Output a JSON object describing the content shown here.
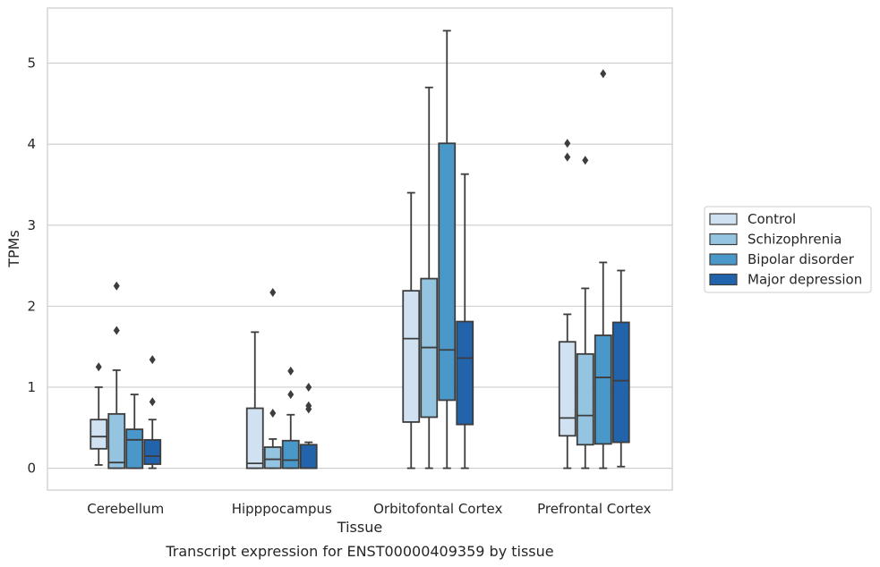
{
  "chart_data": {
    "type": "box",
    "caption": "Transcript expression for ENST00000409359 by tissue",
    "xlabel": "Tissue",
    "ylabel": "TPMs",
    "ylim": [
      -0.27,
      5.68
    ],
    "yticks": [
      0,
      1,
      2,
      3,
      4,
      5
    ],
    "grid": "horizontal",
    "legend_position": "right",
    "categories": [
      "Cerebellum",
      "Hipppocampus",
      "Orbitofontal Cortex",
      "Prefrontal Cortex"
    ],
    "series": [
      {
        "name": "Control",
        "color": "#d0e1f2",
        "boxes": [
          {
            "whislo": 0.04,
            "q1": 0.24,
            "med": 0.39,
            "q3": 0.6,
            "whishi": 1.0,
            "fliers": [
              1.25
            ]
          },
          {
            "whislo": 0.0,
            "q1": 0.0,
            "med": 0.06,
            "q3": 0.74,
            "whishi": 1.68,
            "fliers": []
          },
          {
            "whislo": 0.0,
            "q1": 0.57,
            "med": 1.6,
            "q3": 2.19,
            "whishi": 3.4,
            "fliers": []
          },
          {
            "whislo": 0.0,
            "q1": 0.4,
            "med": 0.62,
            "q3": 1.56,
            "whishi": 1.9,
            "fliers": [
              4.01,
              3.84
            ]
          }
        ]
      },
      {
        "name": "Schizophrenia",
        "color": "#94c4df",
        "boxes": [
          {
            "whislo": 0.0,
            "q1": 0.0,
            "med": 0.07,
            "q3": 0.67,
            "whishi": 1.21,
            "fliers": [
              2.25,
              1.7
            ]
          },
          {
            "whislo": 0.0,
            "q1": 0.0,
            "med": 0.11,
            "q3": 0.26,
            "whishi": 0.36,
            "fliers": [
              2.17,
              0.68
            ]
          },
          {
            "whislo": 0.0,
            "q1": 0.63,
            "med": 1.49,
            "q3": 2.34,
            "whishi": 4.7,
            "fliers": []
          },
          {
            "whislo": 0.0,
            "q1": 0.29,
            "med": 0.65,
            "q3": 1.41,
            "whishi": 2.22,
            "fliers": [
              3.8
            ]
          }
        ]
      },
      {
        "name": "Bipolar disorder",
        "color": "#4a98c9",
        "boxes": [
          {
            "whislo": 0.0,
            "q1": 0.0,
            "med": 0.35,
            "q3": 0.48,
            "whishi": 0.91,
            "fliers": []
          },
          {
            "whislo": 0.0,
            "q1": 0.0,
            "med": 0.1,
            "q3": 0.34,
            "whishi": 0.66,
            "fliers": [
              1.2,
              0.91
            ]
          },
          {
            "whislo": 0.0,
            "q1": 0.84,
            "med": 1.46,
            "q3": 4.01,
            "whishi": 5.4,
            "fliers": []
          },
          {
            "whislo": 0.0,
            "q1": 0.3,
            "med": 1.12,
            "q3": 1.64,
            "whishi": 2.54,
            "fliers": [
              4.87
            ]
          }
        ]
      },
      {
        "name": "Major depression",
        "color": "#2164ab",
        "boxes": [
          {
            "whislo": 0.0,
            "q1": 0.05,
            "med": 0.15,
            "q3": 0.35,
            "whishi": 0.6,
            "fliers": [
              1.34,
              0.82
            ]
          },
          {
            "whislo": 0.0,
            "q1": 0.0,
            "med": 0.0,
            "q3": 0.29,
            "whishi": 0.32,
            "fliers": [
              1.0,
              0.77,
              0.73
            ]
          },
          {
            "whislo": 0.0,
            "q1": 0.54,
            "med": 1.36,
            "q3": 1.81,
            "whishi": 3.63,
            "fliers": []
          },
          {
            "whislo": 0.02,
            "q1": 0.32,
            "med": 1.08,
            "q3": 1.8,
            "whishi": 2.44,
            "fliers": []
          }
        ]
      }
    ]
  }
}
